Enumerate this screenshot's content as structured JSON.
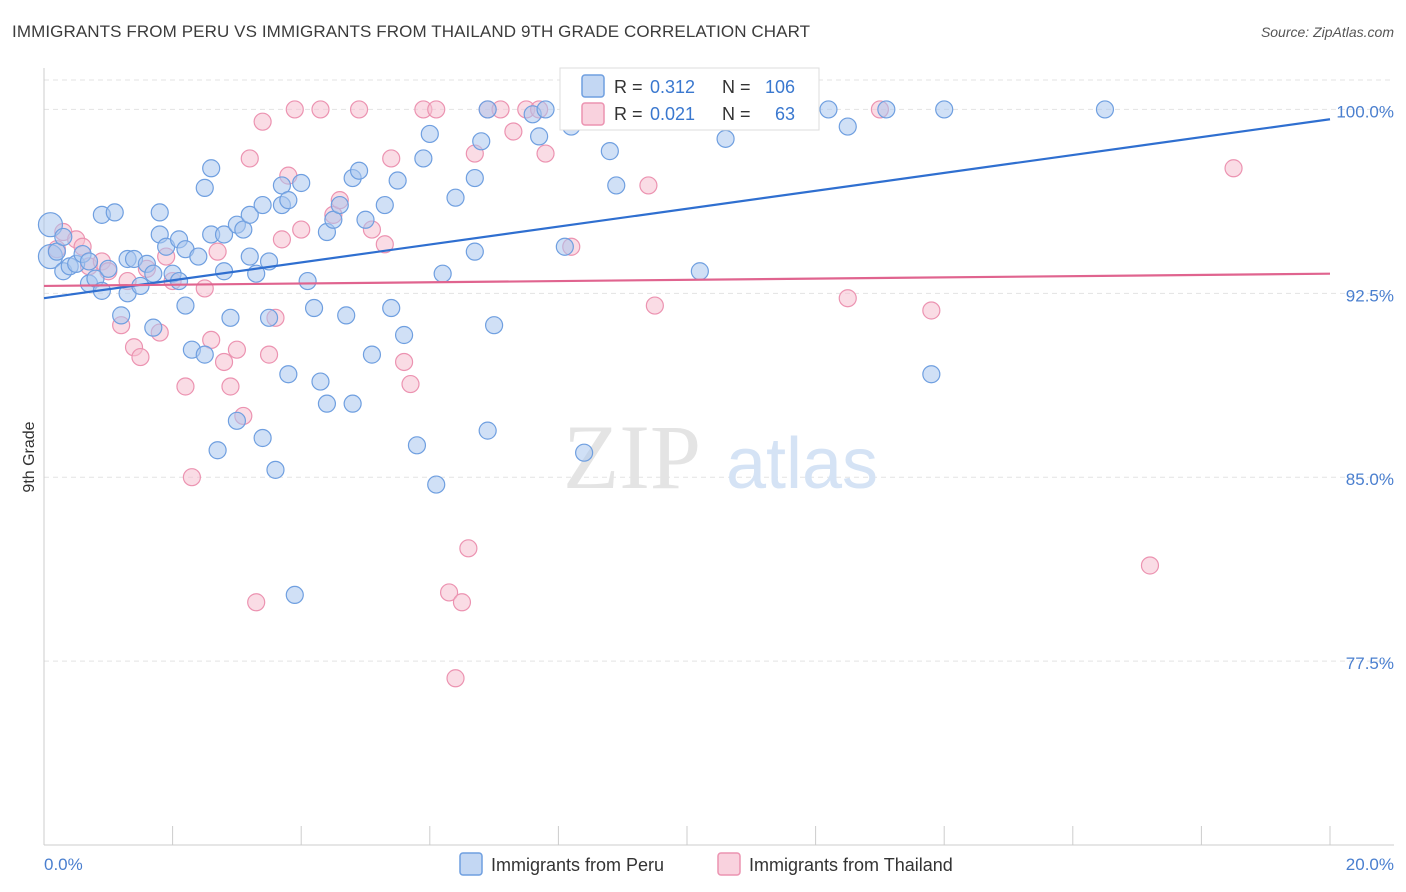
{
  "title": "IMMIGRANTS FROM PERU VS IMMIGRANTS FROM THAILAND 9TH GRADE CORRELATION CHART",
  "source": "Source: ZipAtlas.com",
  "watermark": {
    "zip": "ZIP",
    "atlas": "atlas"
  },
  "colors": {
    "peru_fill": "#a9c6ee",
    "peru_stroke": "#6f9fe0",
    "peru_line": "#2f6fd0",
    "thai_fill": "#f6bfd0",
    "thai_stroke": "#ec93b1",
    "thai_line": "#e0648f",
    "grid": "#e3e3e3",
    "tick_text": "#4a7fcf"
  },
  "legend": {
    "r_label": "R =",
    "n_label": "N =",
    "rows": [
      {
        "r": "0.312",
        "n": "106"
      },
      {
        "r": "0.021",
        "n": "63"
      }
    ]
  },
  "chart_data": {
    "type": "scatter",
    "xlabel": "",
    "ylabel": "9th Grade",
    "xlim": [
      0,
      20
    ],
    "ylim": [
      70,
      101.2
    ],
    "x_tick_labels": [
      "0.0%",
      "20.0%"
    ],
    "y_ticks": [
      77.5,
      85.0,
      92.5,
      100.0
    ],
    "y_tick_labels": [
      "77.5%",
      "85.0%",
      "92.5%",
      "100.0%"
    ],
    "series": [
      {
        "name": "Immigrants from Peru",
        "r": 0.312,
        "n": 106,
        "trend": {
          "x": [
            0,
            20
          ],
          "y": [
            92.3,
            99.6
          ]
        },
        "points": [
          [
            0.1,
            94.0
          ],
          [
            0.1,
            95.3
          ],
          [
            0.2,
            94.2
          ],
          [
            0.3,
            93.4
          ],
          [
            0.3,
            94.8
          ],
          [
            0.4,
            93.6
          ],
          [
            0.5,
            93.7
          ],
          [
            0.6,
            94.1
          ],
          [
            0.7,
            93.8
          ],
          [
            0.7,
            92.9
          ],
          [
            0.8,
            93.1
          ],
          [
            0.9,
            92.6
          ],
          [
            0.9,
            95.7
          ],
          [
            1.0,
            93.5
          ],
          [
            1.1,
            95.8
          ],
          [
            1.2,
            91.6
          ],
          [
            1.3,
            92.5
          ],
          [
            1.3,
            93.9
          ],
          [
            1.4,
            93.9
          ],
          [
            1.5,
            92.8
          ],
          [
            1.6,
            93.7
          ],
          [
            1.7,
            93.3
          ],
          [
            1.7,
            91.1
          ],
          [
            1.8,
            94.9
          ],
          [
            1.8,
            95.8
          ],
          [
            1.9,
            94.4
          ],
          [
            2.0,
            93.3
          ],
          [
            2.1,
            94.7
          ],
          [
            2.1,
            93.0
          ],
          [
            2.2,
            92.0
          ],
          [
            2.2,
            94.3
          ],
          [
            2.3,
            90.2
          ],
          [
            2.4,
            94.0
          ],
          [
            2.5,
            90.0
          ],
          [
            2.5,
            96.8
          ],
          [
            2.6,
            94.9
          ],
          [
            2.6,
            97.6
          ],
          [
            2.7,
            86.1
          ],
          [
            2.8,
            94.9
          ],
          [
            2.8,
            93.4
          ],
          [
            2.9,
            91.5
          ],
          [
            3.0,
            95.3
          ],
          [
            3.0,
            87.3
          ],
          [
            3.1,
            95.1
          ],
          [
            3.2,
            95.7
          ],
          [
            3.2,
            94.0
          ],
          [
            3.3,
            93.3
          ],
          [
            3.4,
            96.1
          ],
          [
            3.4,
            86.6
          ],
          [
            3.5,
            91.5
          ],
          [
            3.5,
            93.8
          ],
          [
            3.6,
            85.3
          ],
          [
            3.7,
            96.1
          ],
          [
            3.7,
            96.9
          ],
          [
            3.8,
            96.3
          ],
          [
            3.8,
            89.2
          ],
          [
            3.9,
            80.2
          ],
          [
            4.0,
            97.0
          ],
          [
            4.1,
            93.0
          ],
          [
            4.2,
            91.9
          ],
          [
            4.3,
            88.9
          ],
          [
            4.4,
            88.0
          ],
          [
            4.4,
            95.0
          ],
          [
            4.5,
            95.5
          ],
          [
            4.6,
            96.1
          ],
          [
            4.7,
            91.6
          ],
          [
            4.8,
            97.2
          ],
          [
            4.8,
            88.0
          ],
          [
            4.9,
            97.5
          ],
          [
            5.0,
            95.5
          ],
          [
            5.1,
            90.0
          ],
          [
            5.3,
            96.1
          ],
          [
            5.4,
            91.9
          ],
          [
            5.5,
            97.1
          ],
          [
            5.6,
            90.8
          ],
          [
            5.8,
            86.3
          ],
          [
            5.9,
            98.0
          ],
          [
            6.0,
            99.0
          ],
          [
            6.1,
            84.7
          ],
          [
            6.2,
            93.3
          ],
          [
            6.4,
            96.4
          ],
          [
            6.7,
            97.2
          ],
          [
            6.7,
            94.2
          ],
          [
            6.8,
            98.7
          ],
          [
            6.9,
            100.0
          ],
          [
            6.9,
            86.9
          ],
          [
            7.0,
            91.2
          ],
          [
            7.6,
            99.8
          ],
          [
            7.7,
            98.9
          ],
          [
            7.8,
            100.0
          ],
          [
            8.1,
            94.4
          ],
          [
            8.2,
            99.3
          ],
          [
            8.4,
            86.0
          ],
          [
            8.8,
            98.3
          ],
          [
            8.9,
            96.9
          ],
          [
            9.6,
            100.0
          ],
          [
            10.2,
            93.4
          ],
          [
            10.6,
            98.8
          ],
          [
            12.2,
            100.0
          ],
          [
            12.5,
            99.3
          ],
          [
            13.1,
            100.0
          ],
          [
            13.8,
            89.2
          ],
          [
            14.0,
            100.0
          ],
          [
            16.5,
            100.0
          ]
        ]
      },
      {
        "name": "Immigrants from Thailand",
        "r": 0.021,
        "n": 63,
        "trend": {
          "x": [
            0,
            20
          ],
          "y": [
            92.8,
            93.3
          ]
        },
        "points": [
          [
            0.2,
            94.3
          ],
          [
            0.3,
            95.0
          ],
          [
            0.5,
            94.7
          ],
          [
            0.6,
            94.4
          ],
          [
            0.7,
            93.6
          ],
          [
            0.9,
            93.8
          ],
          [
            1.0,
            93.4
          ],
          [
            1.2,
            91.2
          ],
          [
            1.3,
            93.0
          ],
          [
            1.4,
            90.3
          ],
          [
            1.5,
            89.9
          ],
          [
            1.6,
            93.5
          ],
          [
            1.8,
            90.9
          ],
          [
            1.9,
            94.0
          ],
          [
            2.0,
            93.0
          ],
          [
            2.2,
            88.7
          ],
          [
            2.3,
            85.0
          ],
          [
            2.5,
            92.7
          ],
          [
            2.6,
            90.6
          ],
          [
            2.7,
            94.2
          ],
          [
            2.8,
            89.7
          ],
          [
            2.9,
            88.7
          ],
          [
            3.0,
            90.2
          ],
          [
            3.1,
            87.5
          ],
          [
            3.2,
            98.0
          ],
          [
            3.3,
            79.9
          ],
          [
            3.4,
            99.5
          ],
          [
            3.5,
            90.0
          ],
          [
            3.6,
            91.5
          ],
          [
            3.7,
            94.7
          ],
          [
            3.8,
            97.3
          ],
          [
            3.9,
            100.0
          ],
          [
            4.0,
            95.1
          ],
          [
            4.3,
            100.0
          ],
          [
            4.5,
            95.7
          ],
          [
            4.6,
            96.3
          ],
          [
            4.9,
            100.0
          ],
          [
            5.1,
            95.1
          ],
          [
            5.3,
            94.5
          ],
          [
            5.4,
            98.0
          ],
          [
            5.6,
            89.7
          ],
          [
            5.7,
            88.8
          ],
          [
            5.9,
            100.0
          ],
          [
            6.1,
            100.0
          ],
          [
            6.3,
            80.3
          ],
          [
            6.4,
            76.8
          ],
          [
            6.5,
            79.9
          ],
          [
            6.6,
            82.1
          ],
          [
            6.7,
            98.2
          ],
          [
            6.9,
            100.0
          ],
          [
            7.1,
            100.0
          ],
          [
            7.3,
            99.1
          ],
          [
            7.5,
            100.0
          ],
          [
            7.7,
            100.0
          ],
          [
            7.8,
            98.2
          ],
          [
            8.2,
            94.4
          ],
          [
            9.4,
            96.9
          ],
          [
            9.5,
            92.0
          ],
          [
            12.5,
            92.3
          ],
          [
            13.0,
            100.0
          ],
          [
            13.8,
            91.8
          ],
          [
            17.2,
            81.4
          ],
          [
            18.5,
            97.6
          ]
        ]
      }
    ]
  }
}
